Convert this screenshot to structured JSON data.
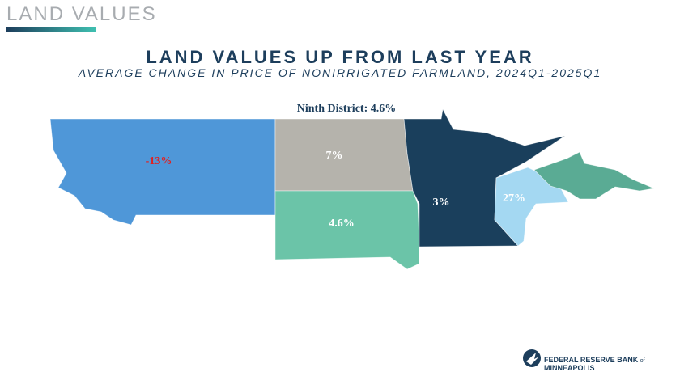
{
  "header": {
    "section": "LAND VALUES"
  },
  "slide": {
    "title": "LAND VALUES UP FROM LAST YEAR",
    "subtitle": "AVERAGE CHANGE IN PRICE OF NONIRRIGATED FARMLAND, 2024Q1-2025Q1"
  },
  "map": {
    "district_label": "Ninth District: 4.6%",
    "regions": [
      {
        "label": "-13%"
      },
      {
        "label": "7%"
      },
      {
        "label": "4.6%"
      },
      {
        "label": "3%"
      },
      {
        "label": "27%"
      }
    ]
  },
  "footer": {
    "name_1": "FEDERAL RESERVE BANK",
    "name_2": "of",
    "name_3": "MINNEAPOLIS"
  }
}
